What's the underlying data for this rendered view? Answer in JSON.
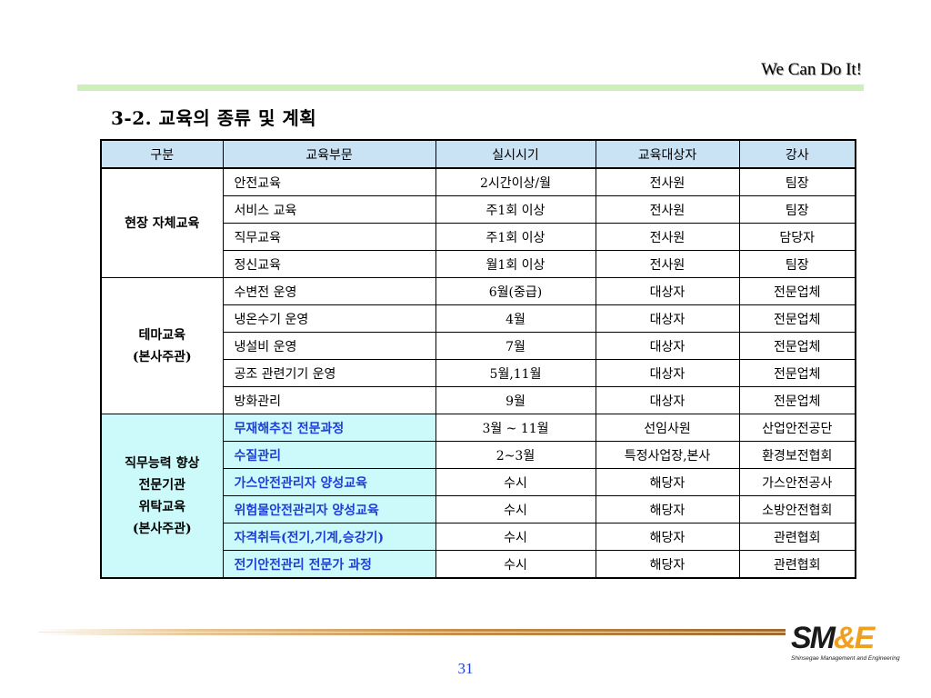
{
  "header": {
    "tagline": "We Can Do It!",
    "title": "3-2. 교육의 종류 및 계획"
  },
  "table": {
    "columns": [
      "구분",
      "교육부문",
      "실시시기",
      "교육대상자",
      "강사"
    ],
    "groups": [
      {
        "label_lines": [
          "현장 자체교육"
        ],
        "highlight": false,
        "rows": [
          [
            "안전교육",
            "2시간이상/월",
            "전사원",
            "팀장"
          ],
          [
            "서비스 교육",
            "주1회 이상",
            "전사원",
            "팀장"
          ],
          [
            "직무교육",
            "주1회 이상",
            "전사원",
            "담당자"
          ],
          [
            "정신교육",
            "월1회 이상",
            "전사원",
            "팀장"
          ]
        ]
      },
      {
        "label_lines": [
          "테마교육",
          "(본사주관)"
        ],
        "highlight": false,
        "rows": [
          [
            "수변전 운영",
            "6월(중급)",
            "대상자",
            "전문업체"
          ],
          [
            "냉온수기 운영",
            "4월",
            "대상자",
            "전문업체"
          ],
          [
            "냉설비 운영",
            "7월",
            "대상자",
            "전문업체"
          ],
          [
            "공조 관련기기 운영",
            "5월,11월",
            "대상자",
            "전문업체"
          ],
          [
            "방화관리",
            "9월",
            "대상자",
            "전문업체"
          ]
        ]
      },
      {
        "label_lines": [
          "직무능력 향상",
          "전문기관",
          "위탁교육",
          "(본사주관)"
        ],
        "highlight": true,
        "rows": [
          [
            "무재해추진 전문과정",
            "3월 ~ 11월",
            "선임사원",
            "산업안전공단"
          ],
          [
            "수질관리",
            "2~3월",
            "특정사업장,본사",
            "환경보전협회"
          ],
          [
            "가스안전관리자 양성교육",
            "수시",
            "해당자",
            "가스안전공사"
          ],
          [
            "위험물안전관리자 양성교육",
            "수시",
            "해당자",
            "소방안전협회"
          ],
          [
            "자격취득(전기,기계,승강기)",
            "수시",
            "해당자",
            "관련협회"
          ],
          [
            "전기안전관리 전문가 과정",
            "수시",
            "해당자",
            "관련협회"
          ]
        ]
      }
    ]
  },
  "footer": {
    "logo_main": "SM",
    "logo_amp": "&",
    "logo_e": "E",
    "logo_sub": "Shinsegae Management and Engineering",
    "page_number": "31"
  },
  "colors": {
    "header_fill": "#c9e2f4",
    "highlight_fill": "#ccfafa",
    "highlight_text": "#1e3fd6",
    "top_rule": "#ccf0b8",
    "page_number": "#1e3fd6"
  }
}
